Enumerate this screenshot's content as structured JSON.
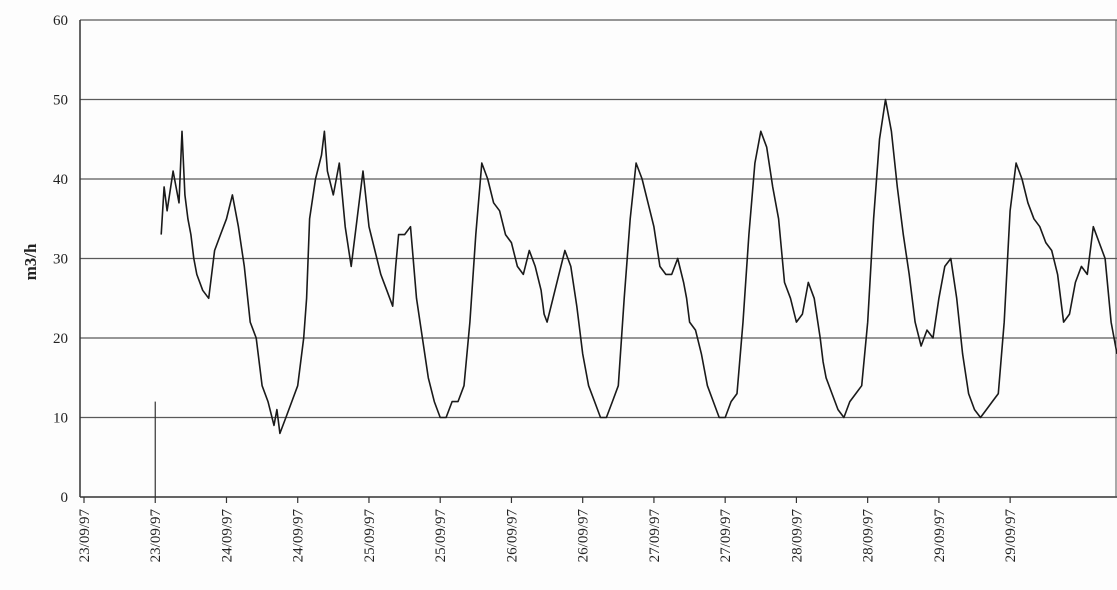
{
  "chart_data": {
    "type": "line",
    "title": "",
    "xlabel": "",
    "ylabel": "m3/h",
    "ylim": [
      0,
      60
    ],
    "yticks": [
      0,
      10,
      20,
      30,
      40,
      50,
      60
    ],
    "x_tick_labels": [
      "23/09/97",
      "23/09/97",
      "24/09/97",
      "24/09/97",
      "25/09/97",
      "25/09/97",
      "26/09/97",
      "26/09/97",
      "27/09/97",
      "27/09/97",
      "28/09/97",
      "28/09/97",
      "29/09/97",
      "29/09/97"
    ],
    "x_unit": "hours",
    "x_range": [
      0,
      174
    ],
    "x_tick_hours": [
      0,
      12,
      24,
      36,
      48,
      60,
      72,
      84,
      96,
      108,
      120,
      132,
      144,
      156
    ],
    "grid": "horizontal",
    "legend": "none",
    "line_color": "#1a1a1a",
    "series": [
      {
        "x": [
          13,
          13.5,
          14,
          15,
          16,
          16.5,
          17,
          17.5,
          18,
          18.5,
          19,
          20,
          21,
          22,
          23,
          24,
          25,
          26,
          27,
          28,
          29,
          30,
          31,
          32,
          32.5,
          33,
          34,
          35,
          36,
          37,
          37.5,
          38,
          39,
          40,
          40.5,
          41,
          42,
          43,
          44,
          45,
          46,
          47,
          48,
          49,
          50,
          51,
          52,
          52.5,
          53,
          54,
          55,
          56,
          57,
          58,
          59,
          60,
          61,
          62,
          63,
          64,
          65,
          66,
          67,
          68,
          69,
          70,
          71,
          72,
          73,
          74,
          75,
          76,
          77,
          77.5,
          78,
          79,
          80,
          81,
          82,
          83,
          84,
          85,
          86,
          87,
          88,
          89,
          90,
          91,
          92,
          93,
          94,
          95,
          96,
          97,
          98,
          99,
          100,
          101,
          101.5,
          102,
          103,
          104,
          105,
          106,
          107,
          108,
          109,
          110,
          111,
          112,
          113,
          114,
          115,
          116,
          117,
          118,
          119,
          120,
          121,
          122,
          123,
          124,
          124.5,
          125,
          126,
          127,
          128,
          129,
          130,
          131,
          132,
          133,
          134,
          135,
          136,
          137,
          138,
          139,
          140,
          141,
          142,
          143,
          144,
          145,
          146,
          147,
          148,
          149,
          150,
          151,
          152,
          153,
          154,
          155,
          156,
          157,
          158,
          159,
          160,
          161,
          162,
          163,
          164,
          165,
          166,
          167,
          168,
          169,
          170,
          171,
          172,
          173,
          174
        ],
        "y": [
          33,
          39,
          36,
          41,
          37,
          46,
          38,
          35,
          33,
          30,
          28,
          26,
          25,
          31,
          33,
          35,
          38,
          34,
          29,
          22,
          20,
          14,
          12,
          9,
          11,
          8,
          10,
          12,
          14,
          20,
          25,
          35,
          40,
          43,
          46,
          41,
          38,
          42,
          34,
          29,
          35,
          41,
          34,
          31,
          28,
          26,
          24,
          29,
          33,
          33,
          34,
          25,
          20,
          15,
          12,
          10,
          10,
          12,
          12,
          14,
          22,
          33,
          42,
          40,
          37,
          36,
          33,
          32,
          29,
          28,
          31,
          29,
          26,
          23,
          22,
          25,
          28,
          31,
          29,
          24,
          18,
          14,
          12,
          10,
          10,
          12,
          14,
          25,
          35,
          42,
          40,
          37,
          34,
          29,
          28,
          28,
          30,
          27,
          25,
          22,
          21,
          18,
          14,
          12,
          10,
          10,
          12,
          13,
          22,
          33,
          42,
          46,
          44,
          39,
          35,
          27,
          25,
          22,
          23,
          27,
          25,
          20,
          17,
          15,
          13,
          11,
          10,
          12,
          13,
          14,
          22,
          35,
          45,
          50,
          46,
          39,
          33,
          28,
          22,
          19,
          21,
          20,
          25,
          29,
          30,
          25,
          18,
          13,
          11,
          10,
          11,
          12,
          13,
          22,
          36,
          42,
          40,
          37,
          35,
          34,
          32,
          31,
          28,
          22,
          23,
          27,
          29,
          28,
          34,
          32,
          30,
          22,
          18
        ]
      }
    ]
  }
}
